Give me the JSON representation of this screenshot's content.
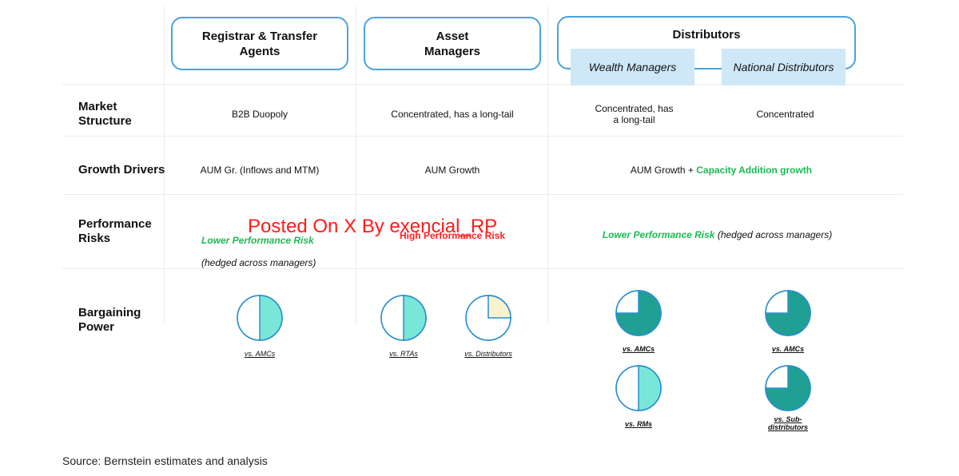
{
  "headers": {
    "rta": "Registrar & Transfer\nAgents",
    "am": "Asset\nManagers",
    "dist": "Distributors",
    "wm": "Wealth Managers",
    "nd": "National Distributors"
  },
  "rows": {
    "market_structure": {
      "label": "Market\nStructure",
      "rta": "B2B Duopoly",
      "am": "Concentrated, has a long-tail",
      "wm": "Concentrated, has\na long-tail",
      "nd": "Concentrated"
    },
    "growth_drivers": {
      "label": "Growth Drivers",
      "rta": "AUM Gr. (Inflows and MTM)",
      "am": "AUM Growth",
      "dist_prefix": "AUM Growth + ",
      "dist_highlight": "Capacity Addition growth"
    },
    "performance_risks": {
      "label": "Performance\nRisks",
      "rta_highlight": "Lower Performance Risk",
      "rta_suffix": "(hedged across managers)",
      "am_highlight": "High Performance Risk",
      "dist_highlight": "Lower Performance Risk",
      "dist_suffix": " (hedged across managers)"
    },
    "bargaining_power": {
      "label": "Bargaining\nPower"
    }
  },
  "pies": [
    {
      "caption": "vs. AMCs",
      "fill": 0.5,
      "color": "#79e6da",
      "bold": false
    },
    {
      "caption": "vs. RTAs",
      "fill": 0.5,
      "color": "#79e6da",
      "bold": false
    },
    {
      "caption": "vs. Distributors",
      "fill": 0.25,
      "color": "#faf1cf",
      "bold": false
    },
    {
      "caption": "vs. AMCs",
      "fill": 0.75,
      "color": "#1fa092",
      "bold": true
    },
    {
      "caption": "vs. AMCs",
      "fill": 0.75,
      "color": "#1fa092",
      "bold": true
    },
    {
      "caption": "vs. RMs",
      "fill": 0.5,
      "color": "#79e6da",
      "bold": true
    },
    {
      "caption": "vs. Sub-\ndistributors",
      "fill": 0.75,
      "color": "#1fa092",
      "bold": true
    }
  ],
  "watermark": "Posted On X By exencial_RP",
  "source": "Source: Bernstein estimates and analysis",
  "colors": {
    "border": "#4aa3dc",
    "sub_header_bg": "#cfe8f7",
    "green": "#1db954",
    "red": "#ff1f1f"
  }
}
